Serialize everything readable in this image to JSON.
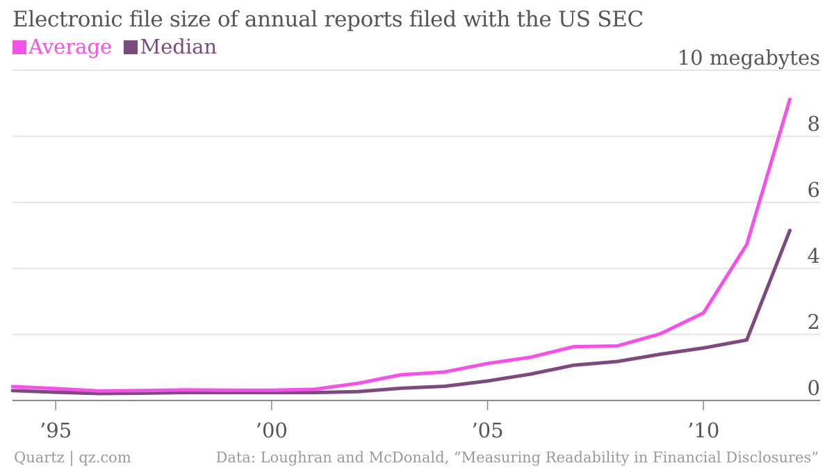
{
  "header": {
    "title": "Electronic file size of annual reports filed with the US SEC"
  },
  "footer": {
    "credit": "Quartz | qz.com",
    "source": "Data: Loughran and McDonald, “Measuring Readability in Financial Disclosures”"
  },
  "colors": {
    "average": "#f451e8",
    "median": "#7d4a80",
    "grid": "#dddddd",
    "baseline": "#888888"
  },
  "chart_data": {
    "type": "line",
    "title": "Electronic file size of annual reports filed with the US SEC",
    "unit_label": "10 megabytes",
    "x": [
      1994,
      1995,
      1996,
      1997,
      1998,
      1999,
      2000,
      2001,
      2002,
      2003,
      2004,
      2005,
      2006,
      2007,
      2008,
      2009,
      2010,
      2011,
      2012
    ],
    "series": [
      {
        "name": "Average",
        "values": [
          0.42,
          0.36,
          0.29,
          0.3,
          0.32,
          0.31,
          0.31,
          0.34,
          0.52,
          0.78,
          0.86,
          1.12,
          1.31,
          1.63,
          1.65,
          2.02,
          2.65,
          4.72,
          9.12
        ]
      },
      {
        "name": "Median",
        "values": [
          0.3,
          0.25,
          0.21,
          0.22,
          0.24,
          0.24,
          0.24,
          0.24,
          0.27,
          0.37,
          0.43,
          0.59,
          0.8,
          1.07,
          1.18,
          1.4,
          1.59,
          1.83,
          5.15
        ]
      }
    ],
    "ylim": [
      0,
      10
    ],
    "y_ticks": [
      0,
      2,
      4,
      6,
      8
    ],
    "y_tick_labels": [
      "0",
      "2",
      "4",
      "6",
      "8"
    ],
    "x_ticks": [
      1995,
      2000,
      2005,
      2010
    ],
    "x_tick_labels": [
      "’95",
      "’00",
      "’05",
      "’10"
    ],
    "xlim": [
      1994,
      2012.7
    ],
    "grid": true,
    "legend_position": "top-left"
  }
}
